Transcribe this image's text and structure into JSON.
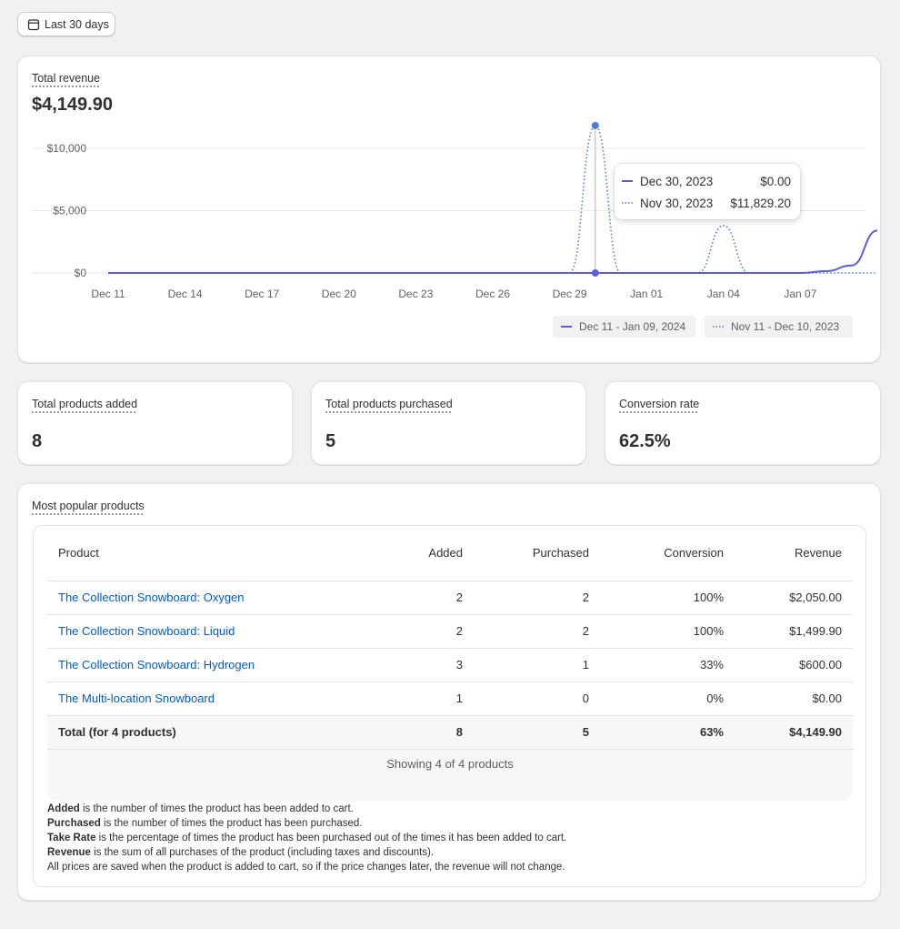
{
  "date_range_button": {
    "label": "Last 30 days",
    "icon": "calendar-icon"
  },
  "revenue": {
    "label": "Total revenue",
    "value": "$4,149.90"
  },
  "chart_data": {
    "type": "line",
    "y_ticks": [
      "$10,000",
      "$5,000",
      "$0"
    ],
    "x_ticks": [
      "Dec 11",
      "Dec 14",
      "Dec 17",
      "Dec 20",
      "Dec 23",
      "Dec 26",
      "Dec 29",
      "Jan 01",
      "Jan 04",
      "Jan 07"
    ],
    "ylim": [
      0,
      12000
    ],
    "series": [
      {
        "name": "Dec 11 - Jan 09, 2024",
        "style": "solid",
        "color": "#5c5ce0",
        "values": [
          0,
          0,
          0,
          0,
          0,
          0,
          0,
          0,
          0,
          0,
          0,
          0,
          0,
          0,
          0,
          0,
          0,
          0,
          0,
          0,
          0,
          0,
          0,
          0,
          0,
          0,
          0,
          0,
          150,
          600,
          3400
        ]
      },
      {
        "name": "Nov 11 - Dec 10, 2023",
        "style": "dotted",
        "color": "#4a7fd9",
        "values": [
          0,
          0,
          0,
          0,
          0,
          0,
          0,
          0,
          0,
          0,
          0,
          0,
          0,
          0,
          0,
          0,
          0,
          0,
          0,
          11829.2,
          0,
          0,
          0,
          0,
          3800,
          0,
          0,
          0,
          0,
          0,
          0
        ]
      }
    ],
    "grid": true,
    "legend": "bottom-right"
  },
  "tooltip": {
    "row1": {
      "date": "Dec 30, 2023",
      "value": "$0.00"
    },
    "row2": {
      "date": "Nov 30, 2023",
      "value": "$11,829.20"
    }
  },
  "legend": {
    "current": "Dec 11 - Jan 09, 2024",
    "previous": "Nov 11 - Dec 10, 2023"
  },
  "stats": {
    "added": {
      "label": "Total products added",
      "value": "8"
    },
    "purchased": {
      "label": "Total products purchased",
      "value": "5"
    },
    "conversion": {
      "label": "Conversion rate",
      "value": "62.5%"
    }
  },
  "popular": {
    "label": "Most popular products",
    "headers": {
      "product": "Product",
      "added": "Added",
      "purchased": "Purchased",
      "conversion": "Conversion",
      "revenue": "Revenue"
    },
    "rows": [
      {
        "product": "The Collection Snowboard: Oxygen",
        "added": "2",
        "purchased": "2",
        "conversion": "100%",
        "revenue": "$2,050.00"
      },
      {
        "product": "The Collection Snowboard: Liquid",
        "added": "2",
        "purchased": "2",
        "conversion": "100%",
        "revenue": "$1,499.90"
      },
      {
        "product": "The Collection Snowboard: Hydrogen",
        "added": "3",
        "purchased": "1",
        "conversion": "33%",
        "revenue": "$600.00"
      },
      {
        "product": "The Multi-location Snowboard",
        "added": "1",
        "purchased": "0",
        "conversion": "0%",
        "revenue": "$0.00"
      }
    ],
    "total": {
      "product": "Total (for 4 products)",
      "added": "8",
      "purchased": "5",
      "conversion": "63%",
      "revenue": "$4,149.90"
    },
    "showing": "Showing 4 of 4 products",
    "notes": [
      {
        "term": "Added",
        "text": " is the number of times the product has been added to cart."
      },
      {
        "term": "Purchased",
        "text": " is the number of times the product has been purchased."
      },
      {
        "term": "Take Rate",
        "text": " is the percentage of times the product has been purchased out of the times it has been added to cart."
      },
      {
        "term": "Revenue",
        "text": " is the sum of all purchases of the product (including taxes and discounts)."
      },
      {
        "term": "",
        "text": "All prices are saved when the product is added to cart, so if the price changes later, the revenue will not change."
      }
    ]
  }
}
